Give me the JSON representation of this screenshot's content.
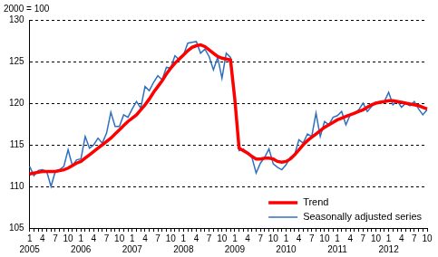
{
  "chart_data": {
    "type": "line",
    "ylabel": "2000 = 100",
    "categories": [
      [
        "1",
        "2005"
      ],
      null,
      null,
      "4",
      null,
      null,
      "7",
      null,
      null,
      "10",
      null,
      null,
      [
        "1",
        "2006"
      ],
      null,
      null,
      "4",
      null,
      null,
      "7",
      null,
      null,
      "10",
      null,
      null,
      [
        "1",
        "2007"
      ],
      null,
      null,
      "4",
      null,
      null,
      "7",
      null,
      null,
      "10",
      null,
      null,
      [
        "1",
        "2008"
      ],
      null,
      null,
      "4",
      null,
      null,
      "7",
      null,
      null,
      "10",
      null,
      null,
      [
        "1",
        "2009"
      ],
      null,
      null,
      "4",
      null,
      null,
      "7",
      null,
      null,
      "10",
      null,
      null,
      [
        "1",
        "2010"
      ],
      null,
      null,
      "4",
      null,
      null,
      "7",
      null,
      null,
      "10",
      null,
      null,
      [
        "1",
        "2011"
      ],
      null,
      null,
      "4",
      null,
      null,
      "7",
      null,
      null,
      "10",
      null,
      null,
      [
        "1",
        "2012"
      ],
      null,
      null,
      "4",
      null,
      null,
      "7",
      null,
      null,
      "10"
    ],
    "series": [
      {
        "name": "Trend",
        "color": "#ff0000",
        "values": [
          111.5,
          111.6,
          111.7,
          111.8,
          111.8,
          111.8,
          111.8,
          111.9,
          112.0,
          112.2,
          112.5,
          112.8,
          113.0,
          113.4,
          113.8,
          114.2,
          114.6,
          115.0,
          115.4,
          115.8,
          116.3,
          116.8,
          117.3,
          117.8,
          118.2,
          118.6,
          119.2,
          119.8,
          120.5,
          121.3,
          122.0,
          122.7,
          123.5,
          124.2,
          124.8,
          125.3,
          125.8,
          126.3,
          126.7,
          126.9,
          127.0,
          126.8,
          126.4,
          126.0,
          125.6,
          125.4,
          125.3,
          125.2,
          120.5,
          114.6,
          114.3,
          114.0,
          113.6,
          113.3,
          113.3,
          113.4,
          113.4,
          113.3,
          113.0,
          112.9,
          113.0,
          113.3,
          113.8,
          114.4,
          115.0,
          115.5,
          115.9,
          116.3,
          116.7,
          117.1,
          117.4,
          117.7,
          118.0,
          118.2,
          118.4,
          118.6,
          118.8,
          119.0,
          119.2,
          119.5,
          119.8,
          120.0,
          120.1,
          120.2,
          120.3,
          120.3,
          120.2,
          120.1,
          120.0,
          119.9,
          119.8,
          119.7,
          119.5,
          119.3
        ]
      },
      {
        "name": "Seasonally adjusted series",
        "color": "#2e6fc0",
        "values": [
          112.4,
          111.3,
          111.9,
          112.0,
          111.8,
          110.0,
          111.8,
          112.0,
          112.4,
          114.4,
          112.5,
          113.2,
          113.3,
          116.0,
          114.6,
          115.0,
          115.8,
          115.2,
          116.4,
          118.9,
          117.2,
          117.2,
          118.6,
          118.3,
          119.3,
          120.2,
          119.4,
          122.0,
          121.5,
          122.5,
          123.3,
          122.8,
          124.3,
          124.2,
          125.7,
          125.2,
          125.8,
          127.2,
          127.3,
          127.4,
          126.0,
          126.5,
          125.6,
          124.0,
          125.5,
          123.0,
          126.0,
          125.5,
          120.8,
          114.3,
          114.5,
          114.0,
          113.5,
          111.6,
          112.8,
          113.5,
          114.5,
          112.7,
          112.3,
          112.0,
          112.6,
          113.5,
          113.8,
          115.6,
          115.2,
          116.3,
          116.0,
          118.8,
          116.0,
          117.8,
          117.4,
          118.3,
          118.5,
          119.0,
          117.4,
          118.6,
          118.8,
          119.2,
          120.0,
          119.0,
          119.6,
          120.1,
          120.0,
          120.2,
          121.3,
          119.8,
          120.3,
          119.5,
          120.0,
          119.7,
          120.2,
          119.3,
          118.6,
          119.2
        ]
      }
    ],
    "ylim": [
      105,
      130
    ],
    "yticks": [
      105,
      110,
      115,
      120,
      125,
      130
    ],
    "grid": true,
    "legend": "lower right"
  }
}
